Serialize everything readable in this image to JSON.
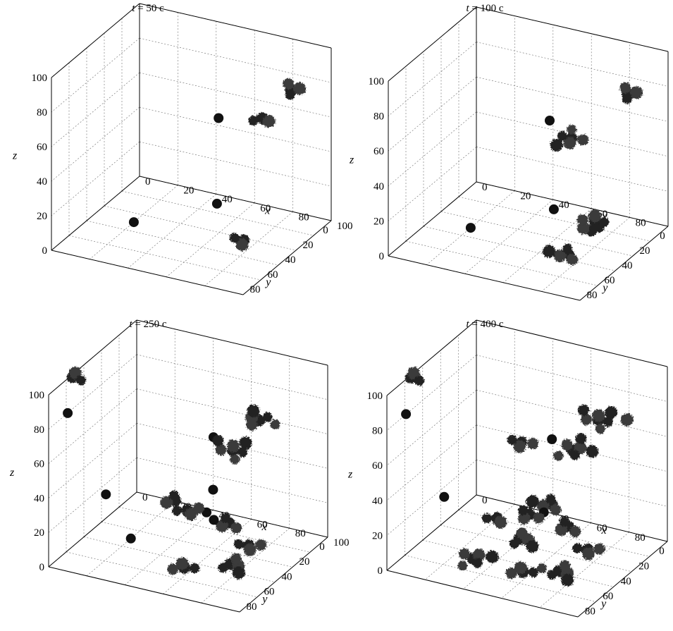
{
  "chart_data": [
    {
      "type": "scatter3d",
      "title_var": "t",
      "title_rest": " = 50 с",
      "xlabel": "x",
      "ylabel": "y",
      "zlabel": "z",
      "xlim": [
        0,
        100
      ],
      "ylim": [
        0,
        100
      ],
      "zlim": [
        0,
        100
      ],
      "x_ticks": [
        "0",
        "20",
        "40",
        "60",
        "80",
        "100"
      ],
      "y_ticks": [
        "0",
        "20",
        "40",
        "60",
        "80"
      ],
      "z_ticks": [
        "0",
        "20",
        "40",
        "60",
        "80",
        "100"
      ],
      "grid": true,
      "clusters": [
        {
          "x": 78,
          "y": 80,
          "z": 88,
          "size": 1
        },
        {
          "x": 85,
          "y": 10,
          "z": 76,
          "size": 3
        },
        {
          "x": 70,
          "y": 12,
          "z": 56,
          "size": 2
        },
        {
          "x": 97,
          "y": 95,
          "z": 28,
          "size": 2
        },
        {
          "x": 20,
          "y": 50,
          "z": 0,
          "size": 1
        },
        {
          "x": 45,
          "y": 10,
          "z": 0,
          "size": 1
        }
      ]
    },
    {
      "type": "scatter3d",
      "title_var": "t",
      "title_rest": " = 100 с",
      "xlabel": "x",
      "ylabel": "y",
      "zlabel": "z",
      "xlim": [
        0,
        100
      ],
      "ylim": [
        0,
        100
      ],
      "zlim": [
        0,
        100
      ],
      "x_ticks": [
        "0",
        "20",
        "40",
        "60",
        "80",
        "100"
      ],
      "y_ticks": [
        "0",
        "20",
        "40",
        "60",
        "80"
      ],
      "z_ticks": [
        "0",
        "20",
        "40",
        "60",
        "80",
        "100"
      ],
      "grid": true,
      "clusters": [
        {
          "x": 75,
          "y": 80,
          "z": 88,
          "size": 1
        },
        {
          "x": 85,
          "y": 10,
          "z": 76,
          "size": 3
        },
        {
          "x": 70,
          "y": 45,
          "z": 60,
          "size": 1
        },
        {
          "x": 60,
          "y": 25,
          "z": 50,
          "size": 5
        },
        {
          "x": 90,
          "y": 95,
          "z": 22,
          "size": 4
        },
        {
          "x": 95,
          "y": 78,
          "z": 30,
          "size": 2
        },
        {
          "x": 90,
          "y": 60,
          "z": 27,
          "size": 3
        },
        {
          "x": 20,
          "y": 50,
          "z": 0,
          "size": 1
        },
        {
          "x": 45,
          "y": 10,
          "z": 0,
          "size": 1
        }
      ]
    },
    {
      "type": "scatter3d",
      "title_var": "t",
      "title_rest": " = 250 с",
      "xlabel": "x",
      "ylabel": "y",
      "zlabel": "z",
      "xlim": [
        0,
        100
      ],
      "ylim": [
        0,
        100
      ],
      "zlim": [
        0,
        100
      ],
      "x_ticks": [
        "0",
        "20",
        "40",
        "60",
        "80",
        "100"
      ],
      "y_ticks": [
        "0",
        "20",
        "40",
        "60",
        "80"
      ],
      "z_ticks": [
        "0",
        "20",
        "40",
        "60",
        "80",
        "100"
      ],
      "grid": true,
      "clusters": [
        {
          "x": 10,
          "y": 92,
          "z": 110,
          "size": 2
        },
        {
          "x": 10,
          "y": 100,
          "z": 92,
          "size": 1
        },
        {
          "x": 78,
          "y": 82,
          "z": 88,
          "size": 1
        },
        {
          "x": 30,
          "y": 100,
          "z": 50,
          "size": 1
        },
        {
          "x": 60,
          "y": 90,
          "z": 50,
          "size": 2
        },
        {
          "x": 75,
          "y": 25,
          "z": 73,
          "size": 5
        },
        {
          "x": 65,
          "y": 30,
          "z": 55,
          "size": 6
        },
        {
          "x": 70,
          "y": 65,
          "z": 48,
          "size": 1
        },
        {
          "x": 95,
          "y": 98,
          "z": 25,
          "size": 4
        },
        {
          "x": 95,
          "y": 80,
          "z": 28,
          "size": 3
        },
        {
          "x": 70,
          "y": 50,
          "z": 22,
          "size": 3
        },
        {
          "x": 55,
          "y": 40,
          "z": 20,
          "size": 1
        },
        {
          "x": 60,
          "y": 75,
          "z": 5,
          "size": 3
        },
        {
          "x": 20,
          "y": 50,
          "z": 0,
          "size": 1
        },
        {
          "x": 45,
          "y": 10,
          "z": 0,
          "size": 1
        },
        {
          "x": 30,
          "y": 8,
          "z": 0,
          "size": 3
        }
      ]
    },
    {
      "type": "scatter3d",
      "title_var": "t",
      "title_rest": " = 400 с",
      "xlabel": "x",
      "ylabel": "y",
      "zlabel": "z",
      "xlim": [
        0,
        100
      ],
      "ylim": [
        0,
        100
      ],
      "zlim": [
        0,
        100
      ],
      "x_ticks": [
        "0",
        "20",
        "40",
        "60",
        "80",
        "100"
      ],
      "y_ticks": [
        "0",
        "20",
        "40",
        "60",
        "80"
      ],
      "z_ticks": [
        "0",
        "20",
        "40",
        "60",
        "80",
        "100"
      ],
      "grid": true,
      "clusters": [
        {
          "x": 10,
          "y": 92,
          "z": 110,
          "size": 2
        },
        {
          "x": 10,
          "y": 100,
          "z": 92,
          "size": 1
        },
        {
          "x": 78,
          "y": 82,
          "z": 88,
          "size": 1
        },
        {
          "x": 60,
          "y": 80,
          "z": 80,
          "size": 3
        },
        {
          "x": 80,
          "y": 90,
          "z": 55,
          "size": 4
        },
        {
          "x": 30,
          "y": 100,
          "z": 50,
          "size": 1
        },
        {
          "x": 75,
          "y": 22,
          "z": 73,
          "size": 7
        },
        {
          "x": 65,
          "y": 28,
          "z": 55,
          "size": 6
        },
        {
          "x": 90,
          "y": 98,
          "z": 22,
          "size": 5
        },
        {
          "x": 95,
          "y": 80,
          "z": 28,
          "size": 3
        },
        {
          "x": 70,
          "y": 50,
          "z": 22,
          "size": 3
        },
        {
          "x": 40,
          "y": 10,
          "z": 5,
          "size": 1
        },
        {
          "x": 60,
          "y": 75,
          "z": 5,
          "size": 3
        },
        {
          "x": 30,
          "y": 65,
          "z": 0,
          "size": 5
        },
        {
          "x": 40,
          "y": 35,
          "z": 0,
          "size": 4
        },
        {
          "x": 20,
          "y": 20,
          "z": 0,
          "size": 2
        },
        {
          "x": 30,
          "y": 8,
          "z": 0,
          "size": 3
        }
      ]
    }
  ]
}
